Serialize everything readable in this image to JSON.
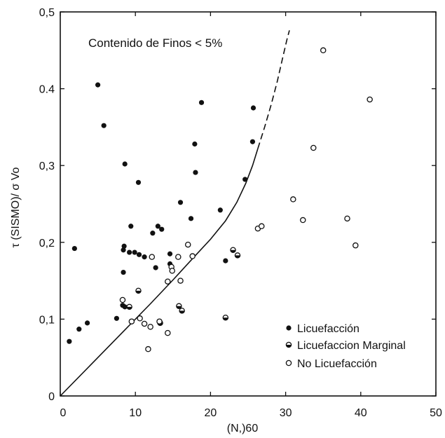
{
  "chart_data": {
    "type": "scatter",
    "title": "Contenido de Finos < 5%",
    "xlabel": "(N,)60",
    "ylabel": "τ (SISMO)/ σ Vo",
    "xlim": [
      0,
      50
    ],
    "ylim": [
      0,
      0.5
    ],
    "grid": false,
    "legend_position": "bottom-right",
    "colors": {
      "ink": "#111111",
      "background": "#ffffff"
    },
    "x_ticks": [
      {
        "value": 0,
        "label": "0"
      },
      {
        "value": 10,
        "label": "10"
      },
      {
        "value": 20,
        "label": "20"
      },
      {
        "value": 30,
        "label": "30"
      },
      {
        "value": 40,
        "label": "40"
      },
      {
        "value": 50,
        "label": "50"
      }
    ],
    "y_ticks": [
      {
        "value": 0,
        "label": "0"
      },
      {
        "value": 0.1,
        "label": "0,1"
      },
      {
        "value": 0.2,
        "label": "0,2"
      },
      {
        "value": 0.3,
        "label": "0,3"
      },
      {
        "value": 0.4,
        "label": "0.4"
      },
      {
        "value": 0.5,
        "label": "0,5"
      }
    ],
    "series": [
      {
        "name": "Licuefacción",
        "marker": "filled-circle",
        "points": [
          [
            5.0,
            0.405
          ],
          [
            5.8,
            0.352
          ],
          [
            18.8,
            0.382
          ],
          [
            25.7,
            0.375
          ],
          [
            17.9,
            0.328
          ],
          [
            25.6,
            0.331
          ],
          [
            8.6,
            0.302
          ],
          [
            10.4,
            0.278
          ],
          [
            18.0,
            0.291
          ],
          [
            24.6,
            0.282
          ],
          [
            16.0,
            0.252
          ],
          [
            21.3,
            0.242
          ],
          [
            17.4,
            0.231
          ],
          [
            9.4,
            0.221
          ],
          [
            13.0,
            0.221
          ],
          [
            13.5,
            0.217
          ],
          [
            12.3,
            0.212
          ],
          [
            1.9,
            0.192
          ],
          [
            8.5,
            0.195
          ],
          [
            8.4,
            0.19
          ],
          [
            9.2,
            0.187
          ],
          [
            9.9,
            0.187
          ],
          [
            10.5,
            0.184
          ],
          [
            11.2,
            0.181
          ],
          [
            14.6,
            0.185
          ],
          [
            14.6,
            0.172
          ],
          [
            12.7,
            0.167
          ],
          [
            8.4,
            0.161
          ],
          [
            22.0,
            0.176
          ],
          [
            8.3,
            0.118
          ],
          [
            8.6,
            0.116
          ],
          [
            7.5,
            0.101
          ],
          [
            3.6,
            0.095
          ],
          [
            2.5,
            0.087
          ],
          [
            1.2,
            0.071
          ]
        ]
      },
      {
        "name": "Licuefaccion Marginal",
        "marker": "half-filled-circle",
        "points": [
          [
            10.4,
            0.137
          ],
          [
            15.8,
            0.117
          ],
          [
            16.2,
            0.111
          ],
          [
            13.3,
            0.095
          ],
          [
            23.0,
            0.19
          ],
          [
            23.6,
            0.183
          ],
          [
            22.0,
            0.102
          ],
          [
            9.2,
            0.116
          ]
        ]
      },
      {
        "name": "No Licuefacción",
        "marker": "open-circle",
        "points": [
          [
            35.0,
            0.45
          ],
          [
            41.2,
            0.386
          ],
          [
            33.7,
            0.323
          ],
          [
            31.0,
            0.256
          ],
          [
            32.3,
            0.229
          ],
          [
            38.2,
            0.231
          ],
          [
            39.3,
            0.196
          ],
          [
            26.3,
            0.218
          ],
          [
            26.8,
            0.221
          ],
          [
            17.0,
            0.197
          ],
          [
            15.7,
            0.181
          ],
          [
            17.6,
            0.182
          ],
          [
            12.2,
            0.181
          ],
          [
            14.8,
            0.168
          ],
          [
            14.9,
            0.163
          ],
          [
            14.3,
            0.149
          ],
          [
            16.0,
            0.15
          ],
          [
            9.5,
            0.097
          ],
          [
            10.6,
            0.101
          ],
          [
            11.2,
            0.094
          ],
          [
            12.0,
            0.09
          ],
          [
            13.2,
            0.097
          ],
          [
            14.3,
            0.082
          ],
          [
            11.7,
            0.061
          ],
          [
            8.3,
            0.125
          ]
        ]
      }
    ],
    "boundary_curve": {
      "solid": [
        [
          0,
          0
        ],
        [
          4,
          0.04
        ],
        [
          8,
          0.08
        ],
        [
          12,
          0.12
        ],
        [
          15,
          0.151
        ],
        [
          18,
          0.183
        ],
        [
          20,
          0.204
        ],
        [
          22,
          0.228
        ],
        [
          23.5,
          0.252
        ],
        [
          24.7,
          0.277
        ],
        [
          25.6,
          0.3
        ],
        [
          26.3,
          0.322
        ]
      ],
      "dashed": [
        [
          26.3,
          0.322
        ],
        [
          27.2,
          0.35
        ],
        [
          28.1,
          0.38
        ],
        [
          28.9,
          0.41
        ],
        [
          29.6,
          0.44
        ],
        [
          30.2,
          0.465
        ],
        [
          30.5,
          0.476
        ]
      ]
    }
  }
}
